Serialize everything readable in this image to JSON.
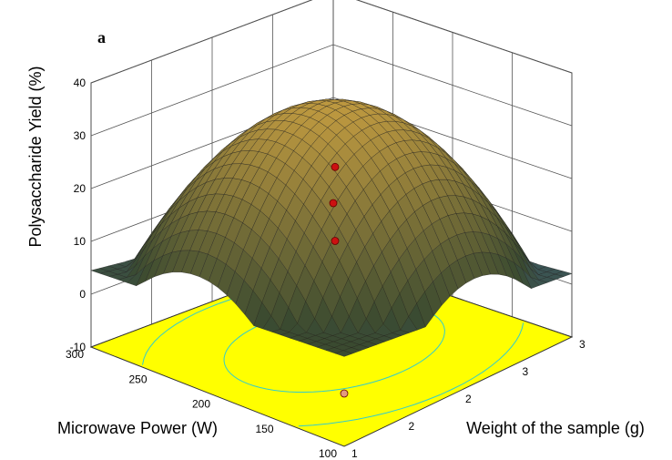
{
  "chart_data": {
    "type": "surface3d",
    "panel_label": "a",
    "zlabel": "Polysaccharide Yield (%)",
    "xlabel": "Microwave Power (W)",
    "ylabel": "Weight of the sample (g)",
    "z_ticks": [
      "-10",
      "0",
      "10",
      "20",
      "30",
      "40"
    ],
    "x_ticks": [
      "100",
      "150",
      "200",
      "250",
      "300"
    ],
    "y_ticks": [
      "1",
      "2",
      "2",
      "3",
      "3"
    ],
    "zlim": [
      -10,
      40
    ],
    "xlim": [
      100,
      300
    ],
    "ylim": [
      1,
      3
    ],
    "grid": true,
    "floor_color": "#ffff00",
    "contour_color": "#33cccc",
    "surface_peak_color": "#c09a40",
    "surface_low_color": "#3f6fb0",
    "surface": {
      "peak_z": 37,
      "peak_x": 200,
      "peak_y": 2,
      "corner_values": {
        "x300_y1": 5,
        "x300_y3": -6,
        "x100_y1": 10,
        "x100_y3": 0
      }
    },
    "design_points": [
      {
        "x": 200,
        "y": 2,
        "z": 24,
        "color": "#cc1111"
      },
      {
        "x": 200,
        "y": 2,
        "z": 10,
        "color": "#cc1111"
      },
      {
        "x": 300,
        "y": 3,
        "z": 0,
        "color": "#cc1111"
      },
      {
        "x": 100,
        "y": 1,
        "z": 0,
        "color": "#e39a80"
      }
    ]
  }
}
